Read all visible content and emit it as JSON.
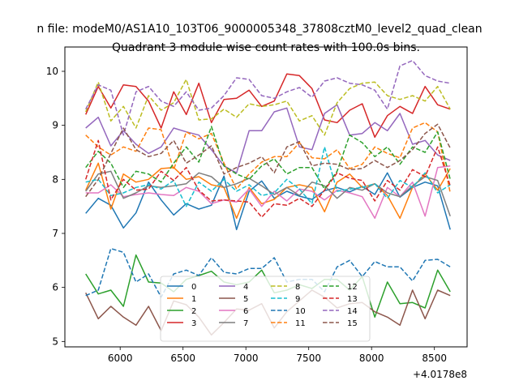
{
  "figure_title": "n file: modeM0/AS1A10_103T06_9000005348_37808cztM0_level2_quad_clean",
  "chart_data": {
    "type": "line",
    "title": "Quadrant 3 module wise count rates with 100.0s bins.",
    "xlabel": "",
    "ylabel": "",
    "x_offset_label": "+4.0178e8",
    "x_offset_value": 401780000,
    "xlim": [
      5560,
      8760
    ],
    "ylim": [
      4.9,
      10.45
    ],
    "xticks": [
      6000,
      6500,
      7000,
      7500,
      8000,
      8500
    ],
    "yticks": [
      5,
      6,
      7,
      8,
      9,
      10
    ],
    "grid": false,
    "legend": {
      "placement": "lower-center",
      "ncol": 4
    },
    "x": [
      5726,
      5826,
      5926,
      6026,
      6126,
      6226,
      6326,
      6426,
      6526,
      6626,
      6726,
      6826,
      6926,
      7026,
      7126,
      7226,
      7326,
      7426,
      7526,
      7626,
      7726,
      7826,
      7926,
      8026,
      8126,
      8226,
      8326,
      8426,
      8526,
      8626
    ],
    "series": [
      {
        "name": "0",
        "color": "#1f77b4",
        "dash": false,
        "values": [
          7.37,
          7.65,
          7.52,
          7.1,
          7.38,
          7.95,
          7.62,
          7.34,
          7.55,
          7.45,
          7.52,
          8.06,
          7.07,
          7.78,
          7.97,
          7.65,
          7.78,
          7.69,
          7.63,
          7.79,
          7.85,
          7.77,
          7.87,
          7.72,
          8.12,
          7.67,
          7.85,
          7.95,
          7.88,
          7.07
        ]
      },
      {
        "name": "1",
        "color": "#ff7f0e",
        "dash": false,
        "values": [
          7.8,
          8.3,
          7.45,
          8.1,
          7.95,
          8.0,
          8.2,
          8.22,
          8.0,
          8.05,
          7.9,
          7.85,
          7.28,
          7.85,
          7.55,
          7.63,
          7.85,
          7.9,
          7.85,
          7.4,
          7.95,
          8.1,
          7.85,
          7.92,
          7.7,
          7.28,
          7.85,
          8.1,
          7.8,
          8.2
        ]
      },
      {
        "name": "2",
        "color": "#2ca02c",
        "dash": false,
        "values": [
          6.25,
          5.88,
          5.95,
          5.65,
          6.6,
          6.1,
          6.08,
          5.92,
          6.15,
          6.22,
          6.3,
          6.1,
          6.05,
          6.1,
          6.32,
          5.9,
          5.95,
          6.05,
          5.98,
          6.15,
          6.15,
          5.95,
          6.2,
          5.45,
          6.1,
          5.7,
          5.72,
          5.62,
          6.32,
          5.92
        ]
      },
      {
        "name": "3",
        "color": "#d62728",
        "dash": false,
        "values": [
          9.2,
          9.72,
          9.32,
          9.75,
          9.72,
          9.45,
          8.95,
          9.62,
          9.2,
          9.78,
          9.05,
          9.48,
          9.5,
          9.65,
          9.35,
          9.45,
          9.95,
          9.92,
          9.68,
          9.1,
          9.05,
          9.28,
          9.4,
          8.78,
          9.18,
          9.35,
          9.22,
          9.72,
          9.38,
          9.3
        ]
      },
      {
        "name": "4",
        "color": "#9467bd",
        "dash": false,
        "values": [
          8.95,
          9.15,
          8.62,
          8.9,
          8.65,
          8.48,
          8.6,
          8.95,
          8.88,
          8.82,
          8.55,
          8.25,
          8.12,
          8.9,
          8.9,
          9.25,
          9.32,
          8.6,
          8.55,
          9.22,
          9.38,
          8.82,
          8.85,
          9.05,
          8.9,
          9.22,
          8.65,
          8.72,
          8.45,
          8.35
        ]
      },
      {
        "name": "5",
        "color": "#8c564b",
        "dash": false,
        "values": [
          5.9,
          5.42,
          5.65,
          5.45,
          5.3,
          5.65,
          5.2,
          5.75,
          5.68,
          5.45,
          5.12,
          5.35,
          5.6,
          5.58,
          5.7,
          5.25,
          5.55,
          5.75,
          5.95,
          5.82,
          5.62,
          5.7,
          5.72,
          5.55,
          5.45,
          5.3,
          5.95,
          5.42,
          5.95,
          5.85
        ]
      },
      {
        "name": "6",
        "color": "#e377c2",
        "dash": false,
        "values": [
          7.75,
          7.75,
          7.9,
          7.68,
          7.72,
          7.75,
          7.72,
          7.7,
          7.85,
          7.78,
          7.55,
          7.62,
          7.58,
          7.82,
          7.5,
          7.78,
          7.6,
          7.82,
          7.78,
          7.62,
          7.8,
          7.75,
          7.68,
          7.28,
          7.85,
          7.68,
          7.95,
          7.32,
          8.22,
          8.25
        ]
      },
      {
        "name": "7",
        "color": "#7f7f7f",
        "dash": false,
        "values": [
          7.78,
          8.1,
          8.15,
          7.65,
          7.75,
          7.88,
          7.85,
          7.88,
          7.92,
          8.12,
          8.05,
          7.85,
          7.92,
          8.02,
          7.88,
          7.72,
          7.85,
          7.7,
          7.95,
          7.88,
          7.65,
          7.85,
          7.8,
          7.92,
          7.75,
          7.68,
          7.88,
          8.05,
          7.98,
          7.32
        ]
      },
      {
        "name": "8",
        "color": "#bcbd22",
        "dash": true,
        "values": [
          9.25,
          9.8,
          9.08,
          9.35,
          8.95,
          9.55,
          9.28,
          9.42,
          9.85,
          9.1,
          9.12,
          9.3,
          9.15,
          9.4,
          9.35,
          9.38,
          9.45,
          9.08,
          9.18,
          8.82,
          9.42,
          9.68,
          9.78,
          9.8,
          9.55,
          9.48,
          9.55,
          9.45,
          9.72,
          9.3
        ]
      },
      {
        "name": "9",
        "color": "#17becf",
        "dash": true,
        "values": [
          7.95,
          8.0,
          7.7,
          7.75,
          7.85,
          7.9,
          7.82,
          7.98,
          7.5,
          7.95,
          7.78,
          8.0,
          7.78,
          7.9,
          7.7,
          7.75,
          8.0,
          7.82,
          7.55,
          8.6,
          7.78,
          7.82,
          7.85,
          7.92,
          7.65,
          7.98,
          7.85,
          8.12,
          7.75,
          7.9
        ]
      },
      {
        "name": "10",
        "color": "#1f77b4",
        "dash": true,
        "values": [
          5.85,
          5.95,
          6.72,
          6.65,
          6.1,
          6.25,
          5.82,
          6.25,
          6.32,
          6.22,
          6.55,
          6.28,
          6.25,
          6.35,
          6.35,
          6.55,
          6.1,
          6.15,
          6.15,
          5.92,
          6.38,
          6.5,
          6.2,
          6.48,
          6.38,
          6.38,
          6.12,
          6.5,
          6.52,
          6.38
        ]
      },
      {
        "name": "11",
        "color": "#ff7f0e",
        "dash": true,
        "values": [
          8.82,
          8.6,
          8.45,
          8.6,
          8.52,
          8.95,
          8.92,
          8.18,
          8.88,
          8.75,
          8.85,
          8.3,
          7.82,
          8.1,
          8.32,
          8.42,
          8.42,
          8.68,
          8.4,
          8.38,
          8.55,
          8.2,
          8.28,
          8.6,
          8.48,
          8.4,
          8.95,
          9.05,
          8.88,
          7.75
        ]
      },
      {
        "name": "12",
        "color": "#2ca02c",
        "dash": true,
        "values": [
          8.22,
          8.52,
          8.3,
          7.85,
          8.15,
          8.1,
          7.95,
          8.3,
          8.6,
          8.32,
          8.98,
          8.25,
          8.1,
          8.0,
          8.25,
          8.38,
          8.1,
          8.22,
          8.22,
          7.82,
          8.15,
          8.82,
          8.68,
          8.42,
          8.6,
          8.28,
          8.6,
          8.5,
          8.88,
          8.0
        ]
      },
      {
        "name": "13",
        "color": "#d62728",
        "dash": true,
        "values": [
          8.0,
          8.72,
          7.62,
          8.0,
          7.8,
          7.82,
          8.15,
          7.98,
          8.22,
          7.8,
          7.6,
          7.62,
          7.6,
          7.58,
          7.3,
          7.55,
          7.52,
          7.65,
          7.5,
          7.8,
          8.12,
          8.02,
          7.98,
          7.6,
          7.98,
          7.8,
          8.18,
          8.05,
          8.6,
          7.88
        ]
      },
      {
        "name": "14",
        "color": "#9467bd",
        "dash": true,
        "values": [
          9.3,
          9.75,
          9.65,
          8.82,
          9.62,
          9.72,
          9.45,
          9.35,
          9.62,
          9.28,
          9.32,
          9.55,
          9.88,
          9.85,
          9.55,
          9.5,
          9.62,
          9.7,
          9.52,
          9.82,
          9.88,
          9.78,
          9.75,
          9.65,
          9.3,
          10.1,
          10.2,
          9.92,
          9.82,
          9.78
        ]
      },
      {
        "name": "15",
        "color": "#8c564b",
        "dash": true,
        "values": [
          7.68,
          8.0,
          8.48,
          8.95,
          8.55,
          8.42,
          8.48,
          8.72,
          8.3,
          8.45,
          8.62,
          8.1,
          8.22,
          8.3,
          8.42,
          8.12,
          8.6,
          8.7,
          8.25,
          8.3,
          8.28,
          8.18,
          8.2,
          8.35,
          8.22,
          8.35,
          8.55,
          8.85,
          9.02,
          8.58
        ]
      }
    ]
  }
}
